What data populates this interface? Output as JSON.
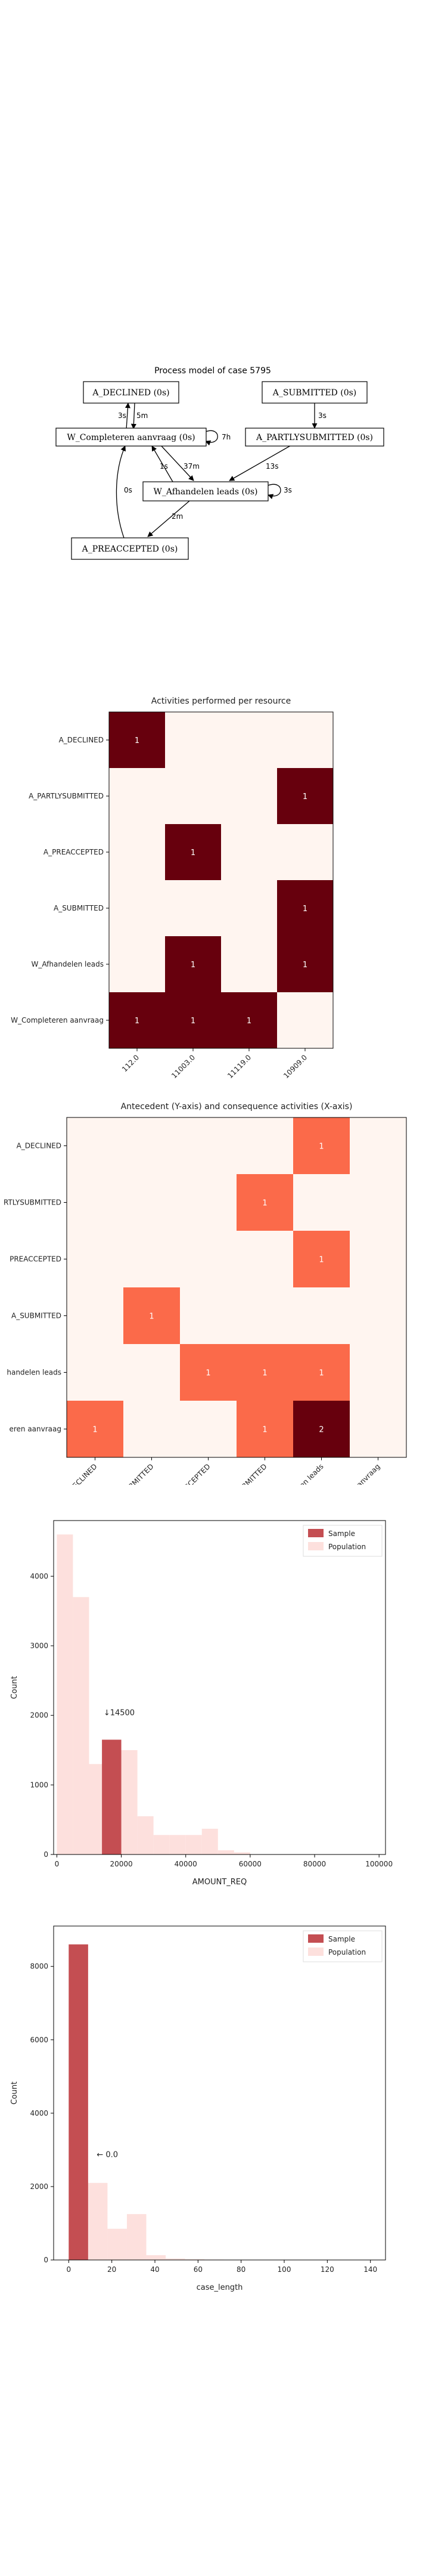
{
  "process_model": {
    "title": "Process model of case 5795",
    "nodes": [
      {
        "id": "declined",
        "label": "A_DECLINED (0s)"
      },
      {
        "id": "submitted",
        "label": "A_SUBMITTED (0s)"
      },
      {
        "id": "completeren",
        "label": "W_Completeren aanvraag (0s)"
      },
      {
        "id": "partly",
        "label": "A_PARTLYSUBMITTED (0s)"
      },
      {
        "id": "afhandelen",
        "label": "W_Afhandelen leads (0s)"
      },
      {
        "id": "preaccepted",
        "label": "A_PREACCEPTED (0s)"
      }
    ],
    "edges": [
      {
        "from": "completeren",
        "to": "declined",
        "label": "3s"
      },
      {
        "from": "declined",
        "to": "completeren",
        "label": "5m"
      },
      {
        "from": "completeren",
        "to": "completeren",
        "label": "7h"
      },
      {
        "from": "submitted",
        "to": "partly",
        "label": "3s"
      },
      {
        "from": "partly",
        "to": "afhandelen",
        "label": "13s"
      },
      {
        "from": "afhandelen",
        "to": "completeren",
        "label": "1s"
      },
      {
        "from": "completeren",
        "to": "afhandelen",
        "label": "37m"
      },
      {
        "from": "afhandelen",
        "to": "afhandelen",
        "label": "3s"
      },
      {
        "from": "preaccepted",
        "to": "completeren",
        "label": "0s"
      },
      {
        "from": "afhandelen",
        "to": "preaccepted",
        "label": "2m"
      }
    ]
  },
  "chart_data": [
    {
      "type": "heatmap",
      "title": "Activities performed per resource",
      "rows": [
        "A_DECLINED",
        "A_PARTLYSUBMITTED",
        "A_PREACCEPTED",
        "A_SUBMITTED",
        "W_Afhandelen leads",
        "W_Completeren aanvraag"
      ],
      "row_tick_labels": [
        "A_DECLINED",
        "A_PARTLYSUBMITTED",
        "A_PREACCEPTED",
        "A_SUBMITTED",
        "W_Afhandelen leads",
        "W_Completeren aanvraag"
      ],
      "columns": [
        "112.0",
        "11003.0",
        "11119.0",
        "10909.0"
      ],
      "values": [
        [
          1,
          0,
          0,
          0
        ],
        [
          0,
          0,
          0,
          1
        ],
        [
          0,
          1,
          0,
          0
        ],
        [
          0,
          0,
          0,
          1
        ],
        [
          0,
          1,
          0,
          1
        ],
        [
          1,
          1,
          1,
          0
        ]
      ],
      "colors": {
        "zero": "#fff5f0",
        "one": "#67000d"
      },
      "text_color": "#ffffff"
    },
    {
      "type": "heatmap",
      "title": "Antecedent (Y-axis) and consequence activities (X-axis)",
      "rows": [
        "A_DECLINED",
        "A_PARTLYSUBMITTED",
        "A_PREACCEPTED",
        "A_SUBMITTED",
        "W_Afhandelen leads",
        "W_Completeren aanvraag"
      ],
      "row_tick_labels": [
        "A_DECLINED",
        "RTLYSUBMITTED",
        "PREACCEPTED",
        "A_SUBMITTED",
        "handelen leads",
        "eren aanvraag"
      ],
      "columns": [
        "A_DECLINED",
        "A_PARTLYSUBMITTED",
        "A_PREACCEPTED",
        "A_SUBMITTED",
        "W_Afhandelen leads",
        "W_Completeren aanvraag"
      ],
      "values": [
        [
          0,
          0,
          0,
          0,
          1,
          0
        ],
        [
          0,
          0,
          0,
          1,
          0,
          0
        ],
        [
          0,
          0,
          0,
          0,
          1,
          0
        ],
        [
          0,
          1,
          0,
          0,
          0,
          0
        ],
        [
          0,
          0,
          1,
          1,
          1,
          0
        ],
        [
          1,
          0,
          0,
          1,
          2,
          0
        ]
      ],
      "colors": {
        "zero": "#fff5f0",
        "one": "#fb6a4a",
        "two": "#67000d"
      },
      "text_color": "#ffffff"
    },
    {
      "type": "bar",
      "title": "",
      "xlabel": "AMOUNT_REQ",
      "ylabel": "Count",
      "xlim": [
        -1000,
        102000
      ],
      "ylim": [
        0,
        4800
      ],
      "xticks": [
        0,
        20000,
        40000,
        60000,
        80000,
        100000
      ],
      "yticks": [
        0,
        1000,
        2000,
        3000,
        4000
      ],
      "population": {
        "name": "Population",
        "color": "#fde0dd",
        "bins": [
          {
            "x0": 0,
            "x1": 5000,
            "count": 4600
          },
          {
            "x0": 5000,
            "x1": 10000,
            "count": 3700
          },
          {
            "x0": 10000,
            "x1": 15000,
            "count": 1300
          },
          {
            "x0": 15000,
            "x1": 20000,
            "count": 1650
          },
          {
            "x0": 20000,
            "x1": 25000,
            "count": 1500
          },
          {
            "x0": 25000,
            "x1": 30000,
            "count": 550
          },
          {
            "x0": 30000,
            "x1": 35000,
            "count": 280
          },
          {
            "x0": 35000,
            "x1": 40000,
            "count": 280
          },
          {
            "x0": 40000,
            "x1": 45000,
            "count": 280
          },
          {
            "x0": 45000,
            "x1": 50000,
            "count": 370
          },
          {
            "x0": 50000,
            "x1": 55000,
            "count": 60
          },
          {
            "x0": 55000,
            "x1": 60000,
            "count": 30
          }
        ]
      },
      "sample": {
        "name": "Sample",
        "color": "#c44e52",
        "x0": 14000,
        "x1": 20000,
        "count": 1650
      },
      "annotation": {
        "text": "↓14500",
        "x": 14500,
        "y": 2000
      },
      "legend": {
        "position": "top-right",
        "entries": [
          "Sample",
          "Population"
        ]
      }
    },
    {
      "type": "bar",
      "title": "",
      "xlabel": "case_length",
      "ylabel": "Count",
      "xlim": [
        -7,
        147
      ],
      "ylim": [
        0,
        9100
      ],
      "xticks": [
        0,
        20,
        40,
        60,
        80,
        100,
        120,
        140
      ],
      "yticks": [
        0,
        2000,
        4000,
        6000,
        8000
      ],
      "population": {
        "name": "Population",
        "color": "#fde0dd",
        "bins": [
          {
            "x0": 0,
            "x1": 9,
            "count": 8600
          },
          {
            "x0": 9,
            "x1": 18,
            "count": 2100
          },
          {
            "x0": 18,
            "x1": 27,
            "count": 850
          },
          {
            "x0": 27,
            "x1": 36,
            "count": 1250
          },
          {
            "x0": 36,
            "x1": 45,
            "count": 130
          },
          {
            "x0": 45,
            "x1": 54,
            "count": 40
          },
          {
            "x0": 54,
            "x1": 63,
            "count": 20
          },
          {
            "x0": 63,
            "x1": 72,
            "count": 10
          }
        ]
      },
      "sample": {
        "name": "Sample",
        "color": "#c44e52",
        "x0": 0,
        "x1": 9,
        "count": 8600
      },
      "annotation": {
        "text": "← 0.0",
        "x": 13,
        "y": 2800
      },
      "legend": {
        "position": "top-right",
        "entries": [
          "Sample",
          "Population"
        ]
      }
    }
  ]
}
